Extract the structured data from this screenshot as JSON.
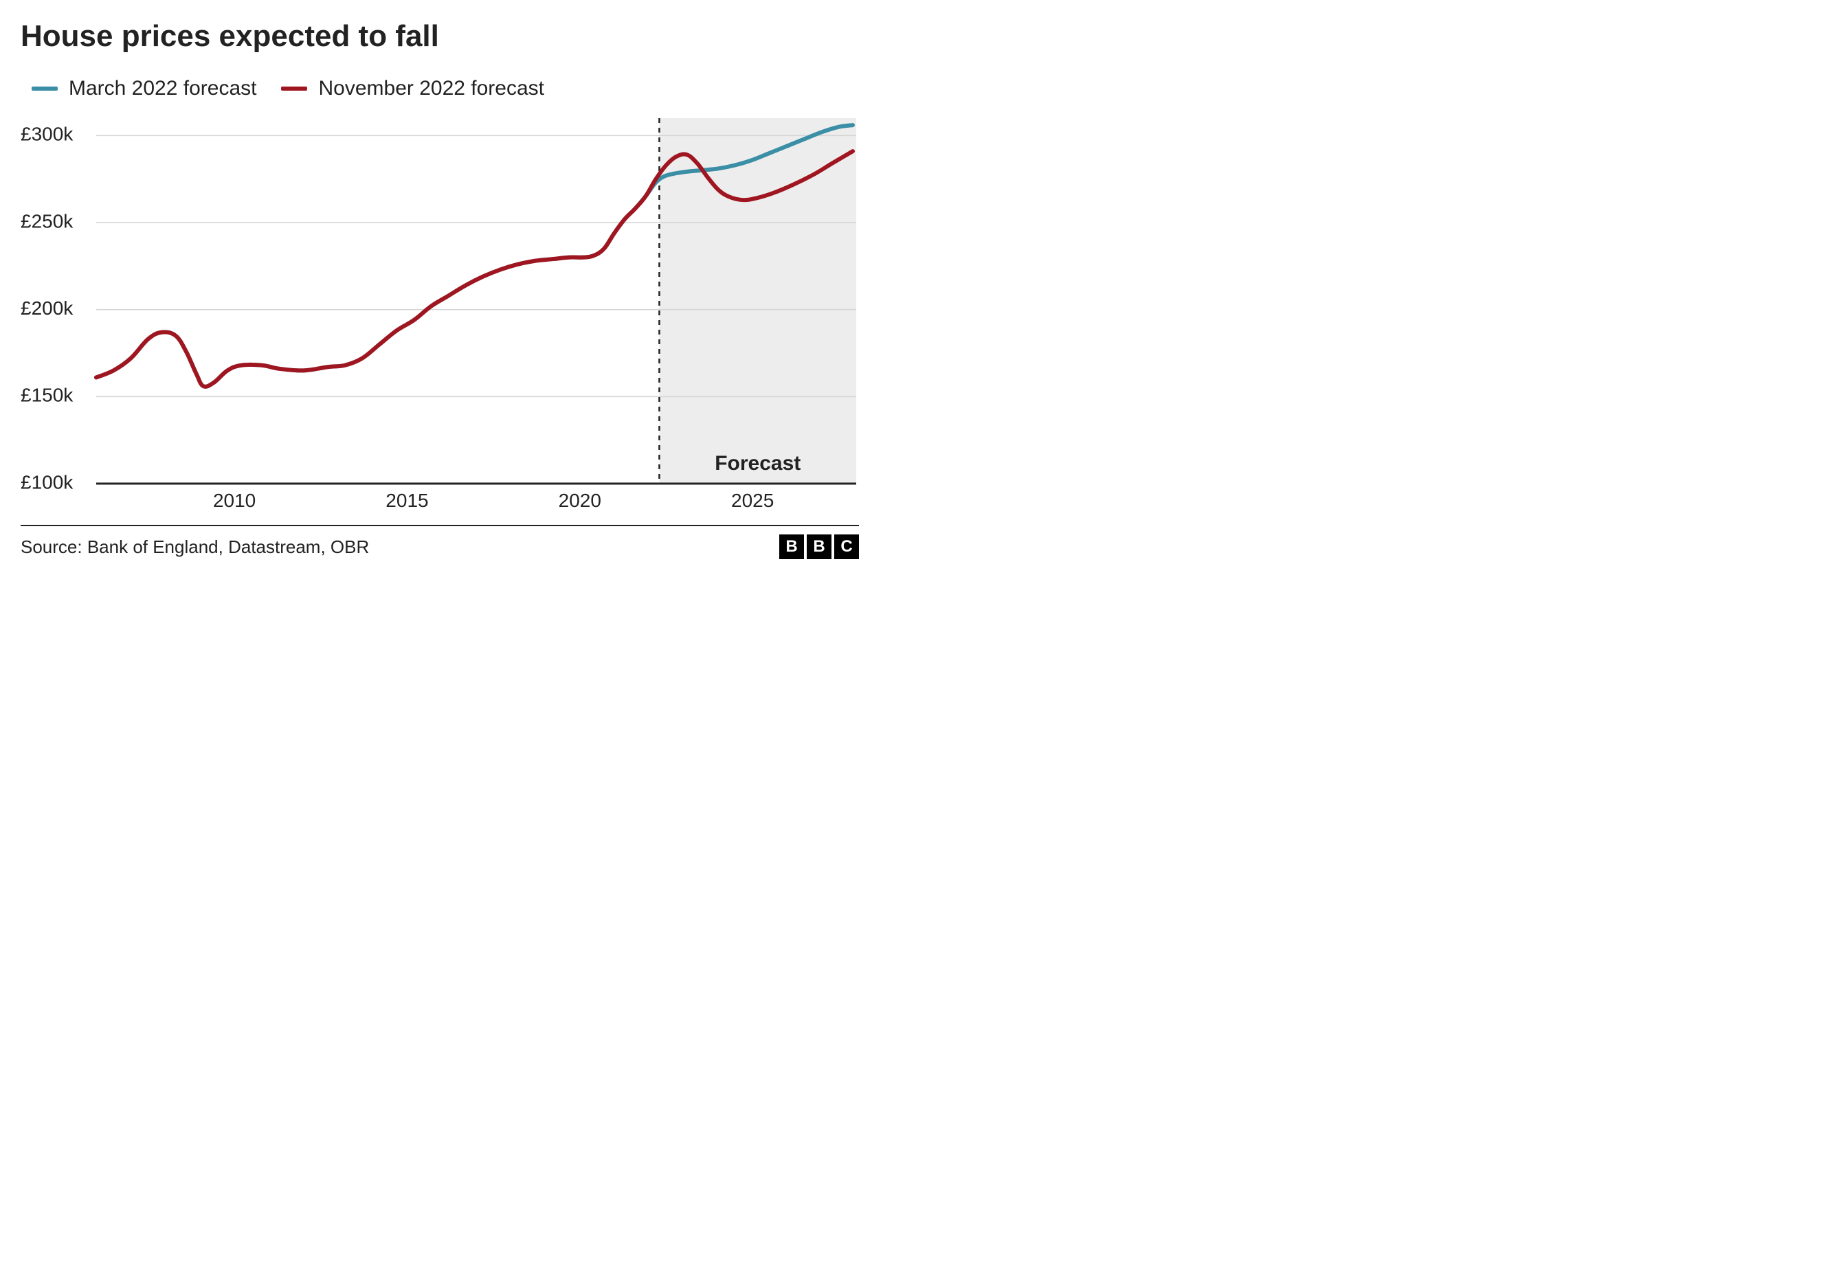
{
  "chart": {
    "type": "line",
    "title": "House prices expected to fall",
    "title_fontsize": 44,
    "background_color": "#ffffff",
    "grid_color": "#d4d4d4",
    "axis_line_color": "#222222",
    "xlim": [
      2006,
      2028
    ],
    "ylim": [
      100,
      310
    ],
    "y_ticks": [
      100,
      150,
      200,
      250,
      300
    ],
    "y_tick_labels": [
      "£100k",
      "£150k",
      "£200k",
      "£250k",
      "£300k"
    ],
    "x_ticks": [
      2010,
      2015,
      2020,
      2025
    ],
    "x_tick_labels": [
      "2010",
      "2015",
      "2020",
      "2025"
    ],
    "label_fontsize": 28,
    "line_width": 6,
    "forecast_region": {
      "start_x": 2022.3,
      "fill": "#ededed",
      "divider_dash": "7 7",
      "label": "Forecast",
      "label_fontsize": 30
    },
    "legend": {
      "items": [
        {
          "label": "March 2022 forecast",
          "color": "#3a8ea5"
        },
        {
          "label": "November 2022 forecast",
          "color": "#a01620"
        }
      ],
      "fontsize": 30
    },
    "series": [
      {
        "name": "March 2022 forecast",
        "color": "#3a8ea5",
        "points": [
          [
            2006.0,
            161
          ],
          [
            2006.5,
            165
          ],
          [
            2007.0,
            172
          ],
          [
            2007.5,
            183
          ],
          [
            2007.9,
            187
          ],
          [
            2008.3,
            185
          ],
          [
            2008.6,
            176
          ],
          [
            2008.9,
            163
          ],
          [
            2009.1,
            156
          ],
          [
            2009.4,
            158
          ],
          [
            2009.8,
            165
          ],
          [
            2010.2,
            168
          ],
          [
            2010.8,
            168
          ],
          [
            2011.3,
            166
          ],
          [
            2012.0,
            165
          ],
          [
            2012.7,
            167
          ],
          [
            2013.2,
            168
          ],
          [
            2013.7,
            172
          ],
          [
            2014.2,
            180
          ],
          [
            2014.7,
            188
          ],
          [
            2015.2,
            194
          ],
          [
            2015.7,
            202
          ],
          [
            2016.2,
            208
          ],
          [
            2016.7,
            214
          ],
          [
            2017.2,
            219
          ],
          [
            2017.7,
            223
          ],
          [
            2018.2,
            226
          ],
          [
            2018.7,
            228
          ],
          [
            2019.2,
            229
          ],
          [
            2019.7,
            230
          ],
          [
            2020.1,
            230
          ],
          [
            2020.4,
            231
          ],
          [
            2020.7,
            235
          ],
          [
            2021.0,
            244
          ],
          [
            2021.3,
            252
          ],
          [
            2021.6,
            258
          ],
          [
            2021.9,
            265
          ],
          [
            2022.2,
            273
          ],
          [
            2022.5,
            277
          ],
          [
            2023.0,
            279
          ],
          [
            2023.5,
            280
          ],
          [
            2024.0,
            281
          ],
          [
            2024.5,
            283
          ],
          [
            2025.0,
            286
          ],
          [
            2025.5,
            290
          ],
          [
            2026.0,
            294
          ],
          [
            2026.5,
            298
          ],
          [
            2027.0,
            302
          ],
          [
            2027.5,
            305
          ],
          [
            2027.9,
            306
          ]
        ]
      },
      {
        "name": "November 2022 forecast",
        "color": "#a01620",
        "points": [
          [
            2006.0,
            161
          ],
          [
            2006.5,
            165
          ],
          [
            2007.0,
            172
          ],
          [
            2007.5,
            183
          ],
          [
            2007.9,
            187
          ],
          [
            2008.3,
            185
          ],
          [
            2008.6,
            176
          ],
          [
            2008.9,
            163
          ],
          [
            2009.1,
            156
          ],
          [
            2009.4,
            158
          ],
          [
            2009.8,
            165
          ],
          [
            2010.2,
            168
          ],
          [
            2010.8,
            168
          ],
          [
            2011.3,
            166
          ],
          [
            2012.0,
            165
          ],
          [
            2012.7,
            167
          ],
          [
            2013.2,
            168
          ],
          [
            2013.7,
            172
          ],
          [
            2014.2,
            180
          ],
          [
            2014.7,
            188
          ],
          [
            2015.2,
            194
          ],
          [
            2015.7,
            202
          ],
          [
            2016.2,
            208
          ],
          [
            2016.7,
            214
          ],
          [
            2017.2,
            219
          ],
          [
            2017.7,
            223
          ],
          [
            2018.2,
            226
          ],
          [
            2018.7,
            228
          ],
          [
            2019.2,
            229
          ],
          [
            2019.7,
            230
          ],
          [
            2020.1,
            230
          ],
          [
            2020.4,
            231
          ],
          [
            2020.7,
            235
          ],
          [
            2021.0,
            244
          ],
          [
            2021.3,
            252
          ],
          [
            2021.6,
            258
          ],
          [
            2021.9,
            265
          ],
          [
            2022.2,
            275
          ],
          [
            2022.5,
            283
          ],
          [
            2022.8,
            288
          ],
          [
            2023.1,
            289
          ],
          [
            2023.4,
            284
          ],
          [
            2023.7,
            276
          ],
          [
            2024.0,
            269
          ],
          [
            2024.3,
            265
          ],
          [
            2024.7,
            263
          ],
          [
            2025.1,
            264
          ],
          [
            2025.6,
            267
          ],
          [
            2026.2,
            272
          ],
          [
            2026.8,
            278
          ],
          [
            2027.3,
            284
          ],
          [
            2027.9,
            291
          ]
        ]
      }
    ]
  },
  "footer": {
    "source_text": "Source: Bank of England, Datastream, OBR",
    "logo_letters": [
      "B",
      "B",
      "C"
    ],
    "logo_bg": "#000000",
    "logo_fg": "#ffffff"
  }
}
